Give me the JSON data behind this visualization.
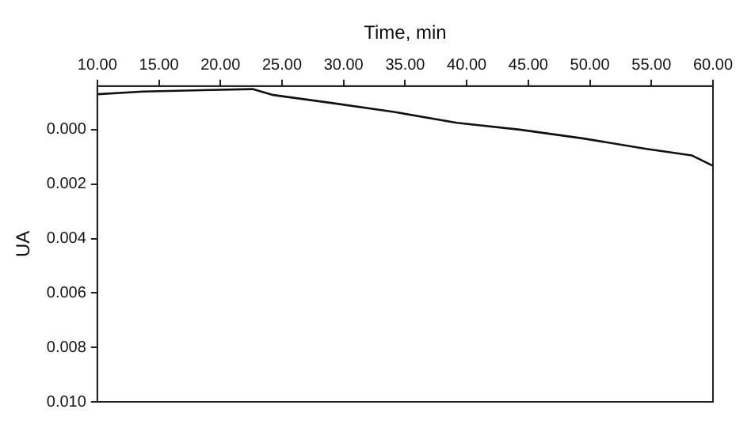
{
  "chart_data": {
    "type": "line",
    "xlabel": "Time, min",
    "ylabel": "UA",
    "xlim": [
      10,
      60
    ],
    "xticks": [
      {
        "value": 10,
        "label": "10.00"
      },
      {
        "value": 15,
        "label": "15.00"
      },
      {
        "value": 20,
        "label": "20.00"
      },
      {
        "value": 25,
        "label": "25.00"
      },
      {
        "value": 30,
        "label": "30.00"
      },
      {
        "value": 35,
        "label": "35.00"
      },
      {
        "value": 40,
        "label": "40.00"
      },
      {
        "value": 45,
        "label": "45.00"
      },
      {
        "value": 50,
        "label": "50.00"
      },
      {
        "value": 55,
        "label": "55.00"
      },
      {
        "value": 60,
        "label": "60.00"
      }
    ],
    "ylim": [
      0.01,
      -0.0016
    ],
    "yticks": [
      {
        "value": 0,
        "label": "0.000"
      },
      {
        "value": 0.002,
        "label": "0.002"
      },
      {
        "value": 0.004,
        "label": "0.004"
      },
      {
        "value": 0.006,
        "label": "0.006"
      },
      {
        "value": 0.008,
        "label": "0.008"
      },
      {
        "value": 0.01,
        "label": "0.010"
      }
    ],
    "grid": false,
    "legend": false,
    "marker": "none",
    "line_style": "solid",
    "x": [
      10,
      13.7,
      22.6,
      24.3,
      29.0,
      34.1,
      39.2,
      44.3,
      49.4,
      54.5,
      58.3,
      60
    ],
    "series": [
      {
        "color": "#111111",
        "values": [
          -0.0013,
          -0.0014,
          -0.00149,
          -0.00127,
          -0.00098,
          -0.00065,
          -0.00025,
          0.0,
          0.00032,
          0.0007,
          0.00095,
          0.00133
        ]
      }
    ]
  }
}
